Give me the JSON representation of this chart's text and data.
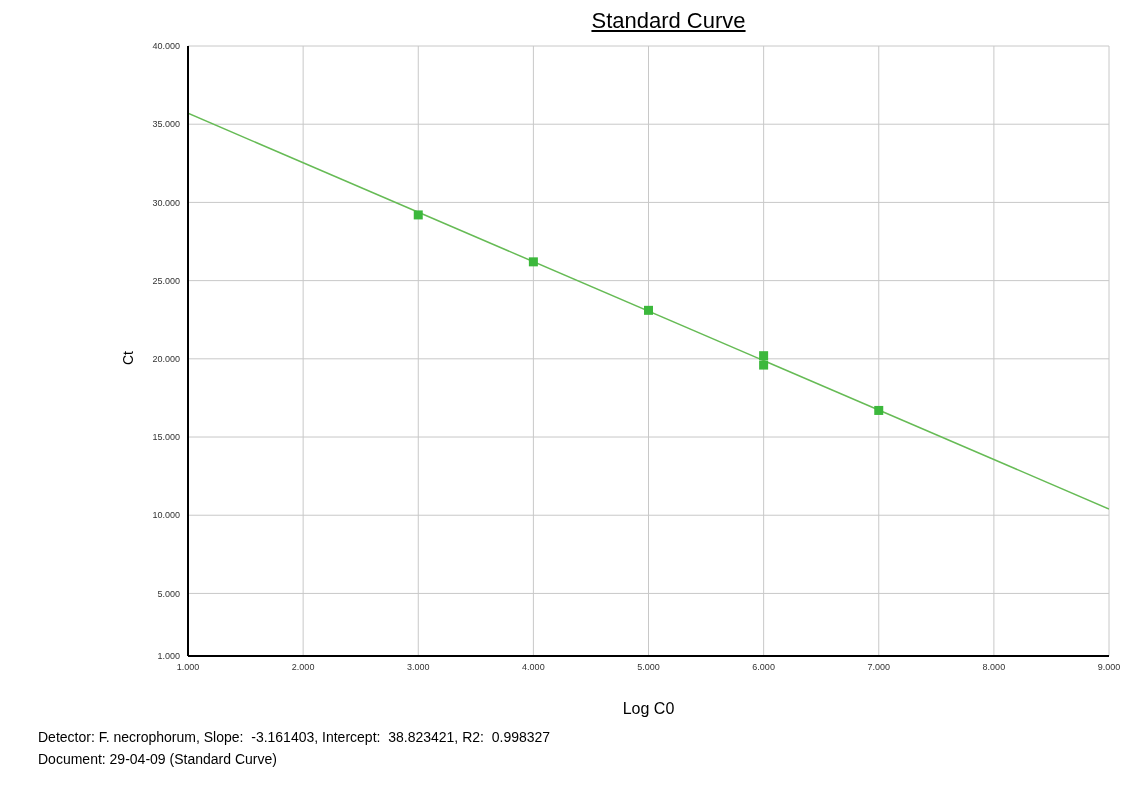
{
  "chart_data": {
    "type": "scatter",
    "title": "Standard Curve",
    "xlabel": "Log C0",
    "ylabel": "Ct",
    "xlim": [
      1,
      9
    ],
    "xticks": [
      {
        "value": 1,
        "label": "1.000"
      },
      {
        "value": 2,
        "label": "2.000"
      },
      {
        "value": 3,
        "label": "3.000"
      },
      {
        "value": 4,
        "label": "4.000"
      },
      {
        "value": 5,
        "label": "5.000"
      },
      {
        "value": 6,
        "label": "6.000"
      },
      {
        "value": 7,
        "label": "7.000"
      },
      {
        "value": 8,
        "label": "8.000"
      },
      {
        "value": 9,
        "label": "9.000"
      }
    ],
    "ylim": [
      1,
      40
    ],
    "yticks": [
      {
        "value": 1,
        "label": "1.000"
      },
      {
        "value": 5,
        "label": "5.000"
      },
      {
        "value": 10,
        "label": "10.000"
      },
      {
        "value": 15,
        "label": "15.000"
      },
      {
        "value": 20,
        "label": "20.000"
      },
      {
        "value": 25,
        "label": "25.000"
      },
      {
        "value": 30,
        "label": "30.000"
      },
      {
        "value": 35,
        "label": "35.000"
      },
      {
        "value": 40,
        "label": "40.000"
      }
    ],
    "grid": true,
    "series": [
      {
        "color": "#3cb83c",
        "marker": "square",
        "x": [
          3,
          4,
          5,
          6,
          6,
          7
        ],
        "values": [
          29.2,
          26.2,
          23.1,
          20.2,
          19.6,
          16.7
        ]
      },
      {
        "type": "line",
        "color": "#66bb55",
        "marker": "none",
        "line_style": "solid",
        "x": [
          1,
          9
        ],
        "values": [
          35.7,
          10.4
        ]
      }
    ],
    "annotations": [
      "Detector: F. necrophorum, Slope:  -3.161403, Intercept:  38.823421, R2:  0.998327",
      "Document: 29-04-09 (Standard Curve)"
    ]
  }
}
